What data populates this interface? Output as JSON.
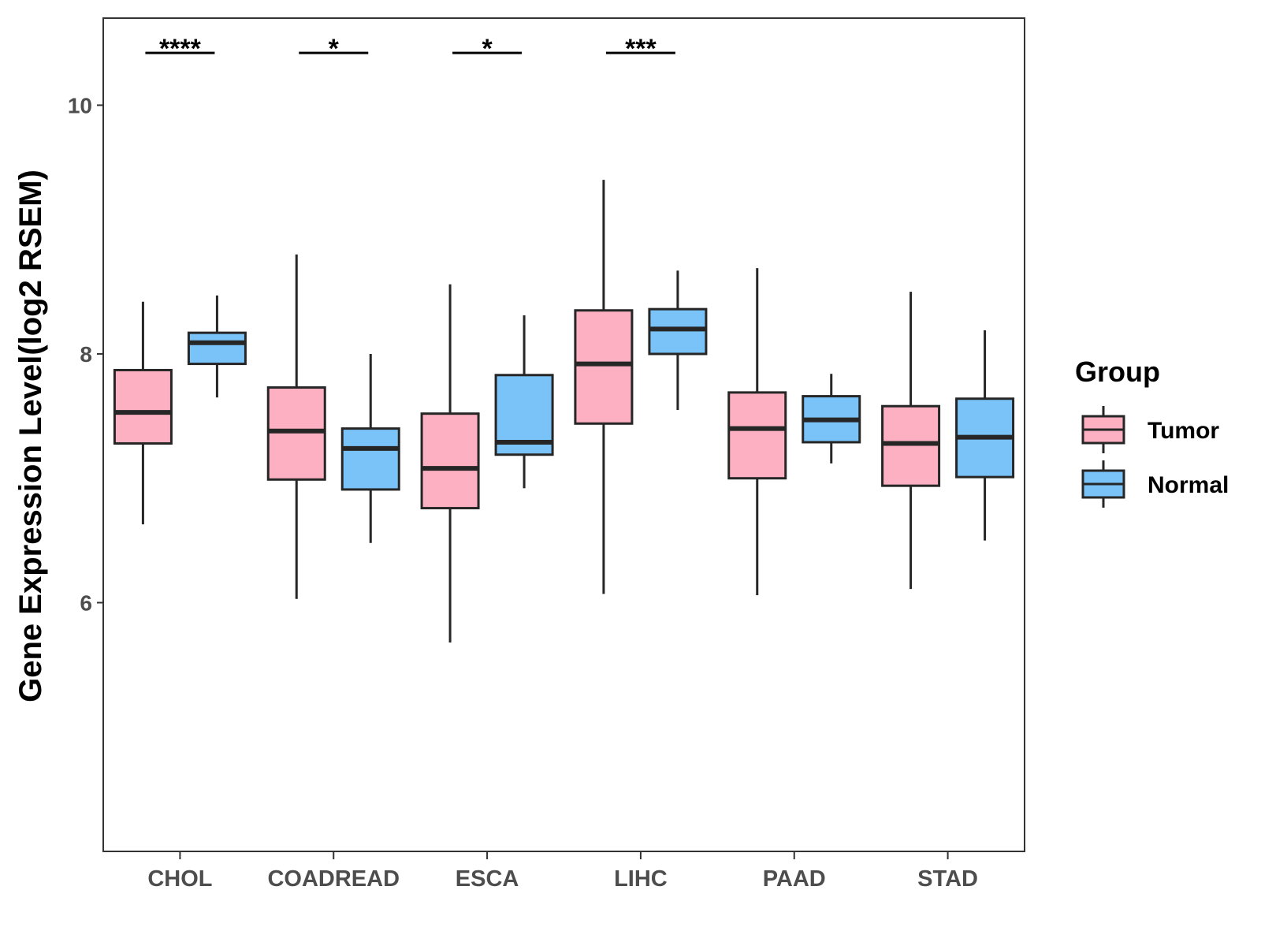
{
  "chart_data": {
    "type": "boxplot",
    "title": "",
    "xlabel": "",
    "ylabel": "Gene Expression Level(log2 RSEM)",
    "ylim": [
      4.0,
      10.7
    ],
    "yticks": [
      6,
      8,
      10
    ],
    "categories": [
      "CHOL",
      "COADREAD",
      "ESCA",
      "LIHC",
      "PAAD",
      "STAD"
    ],
    "legend": {
      "title": "Group",
      "position": "right"
    },
    "colors": {
      "Tumor": "#fcb0c2",
      "Normal": "#7ac3f8",
      "outline": "#262626"
    },
    "series": [
      {
        "name": "Tumor",
        "boxes": [
          {
            "min": 6.63,
            "q1": 7.28,
            "median": 7.53,
            "q3": 7.87,
            "max": 8.42
          },
          {
            "min": 6.03,
            "q1": 6.99,
            "median": 7.38,
            "q3": 7.73,
            "max": 8.8
          },
          {
            "min": 5.68,
            "q1": 6.76,
            "median": 7.08,
            "q3": 7.52,
            "max": 8.56
          },
          {
            "min": 6.07,
            "q1": 7.44,
            "median": 7.92,
            "q3": 8.35,
            "max": 9.4
          },
          {
            "min": 6.06,
            "q1": 7.0,
            "median": 7.4,
            "q3": 7.69,
            "max": 8.69
          },
          {
            "min": 6.11,
            "q1": 6.94,
            "median": 7.28,
            "q3": 7.58,
            "max": 8.5
          }
        ]
      },
      {
        "name": "Normal",
        "boxes": [
          {
            "min": 7.65,
            "q1": 7.92,
            "median": 8.09,
            "q3": 8.17,
            "max": 8.47
          },
          {
            "min": 6.48,
            "q1": 6.91,
            "median": 7.24,
            "q3": 7.4,
            "max": 8.0
          },
          {
            "min": 6.92,
            "q1": 7.19,
            "median": 7.29,
            "q3": 7.83,
            "max": 8.31
          },
          {
            "min": 7.55,
            "q1": 8.0,
            "median": 8.2,
            "q3": 8.36,
            "max": 8.67
          },
          {
            "min": 7.12,
            "q1": 7.29,
            "median": 7.47,
            "q3": 7.66,
            "max": 7.84
          },
          {
            "min": 6.5,
            "q1": 7.01,
            "median": 7.33,
            "q3": 7.64,
            "max": 8.19
          }
        ]
      }
    ],
    "significance": [
      {
        "category": "CHOL",
        "label": "****",
        "y": 10.42
      },
      {
        "category": "COADREAD",
        "label": "*",
        "y": 10.42
      },
      {
        "category": "ESCA",
        "label": "*",
        "y": 10.42
      },
      {
        "category": "LIHC",
        "label": "***",
        "y": 10.42
      },
      {
        "category": "PAAD",
        "label": "",
        "y": 10.42
      },
      {
        "category": "STAD",
        "label": "",
        "y": 10.42
      }
    ]
  }
}
